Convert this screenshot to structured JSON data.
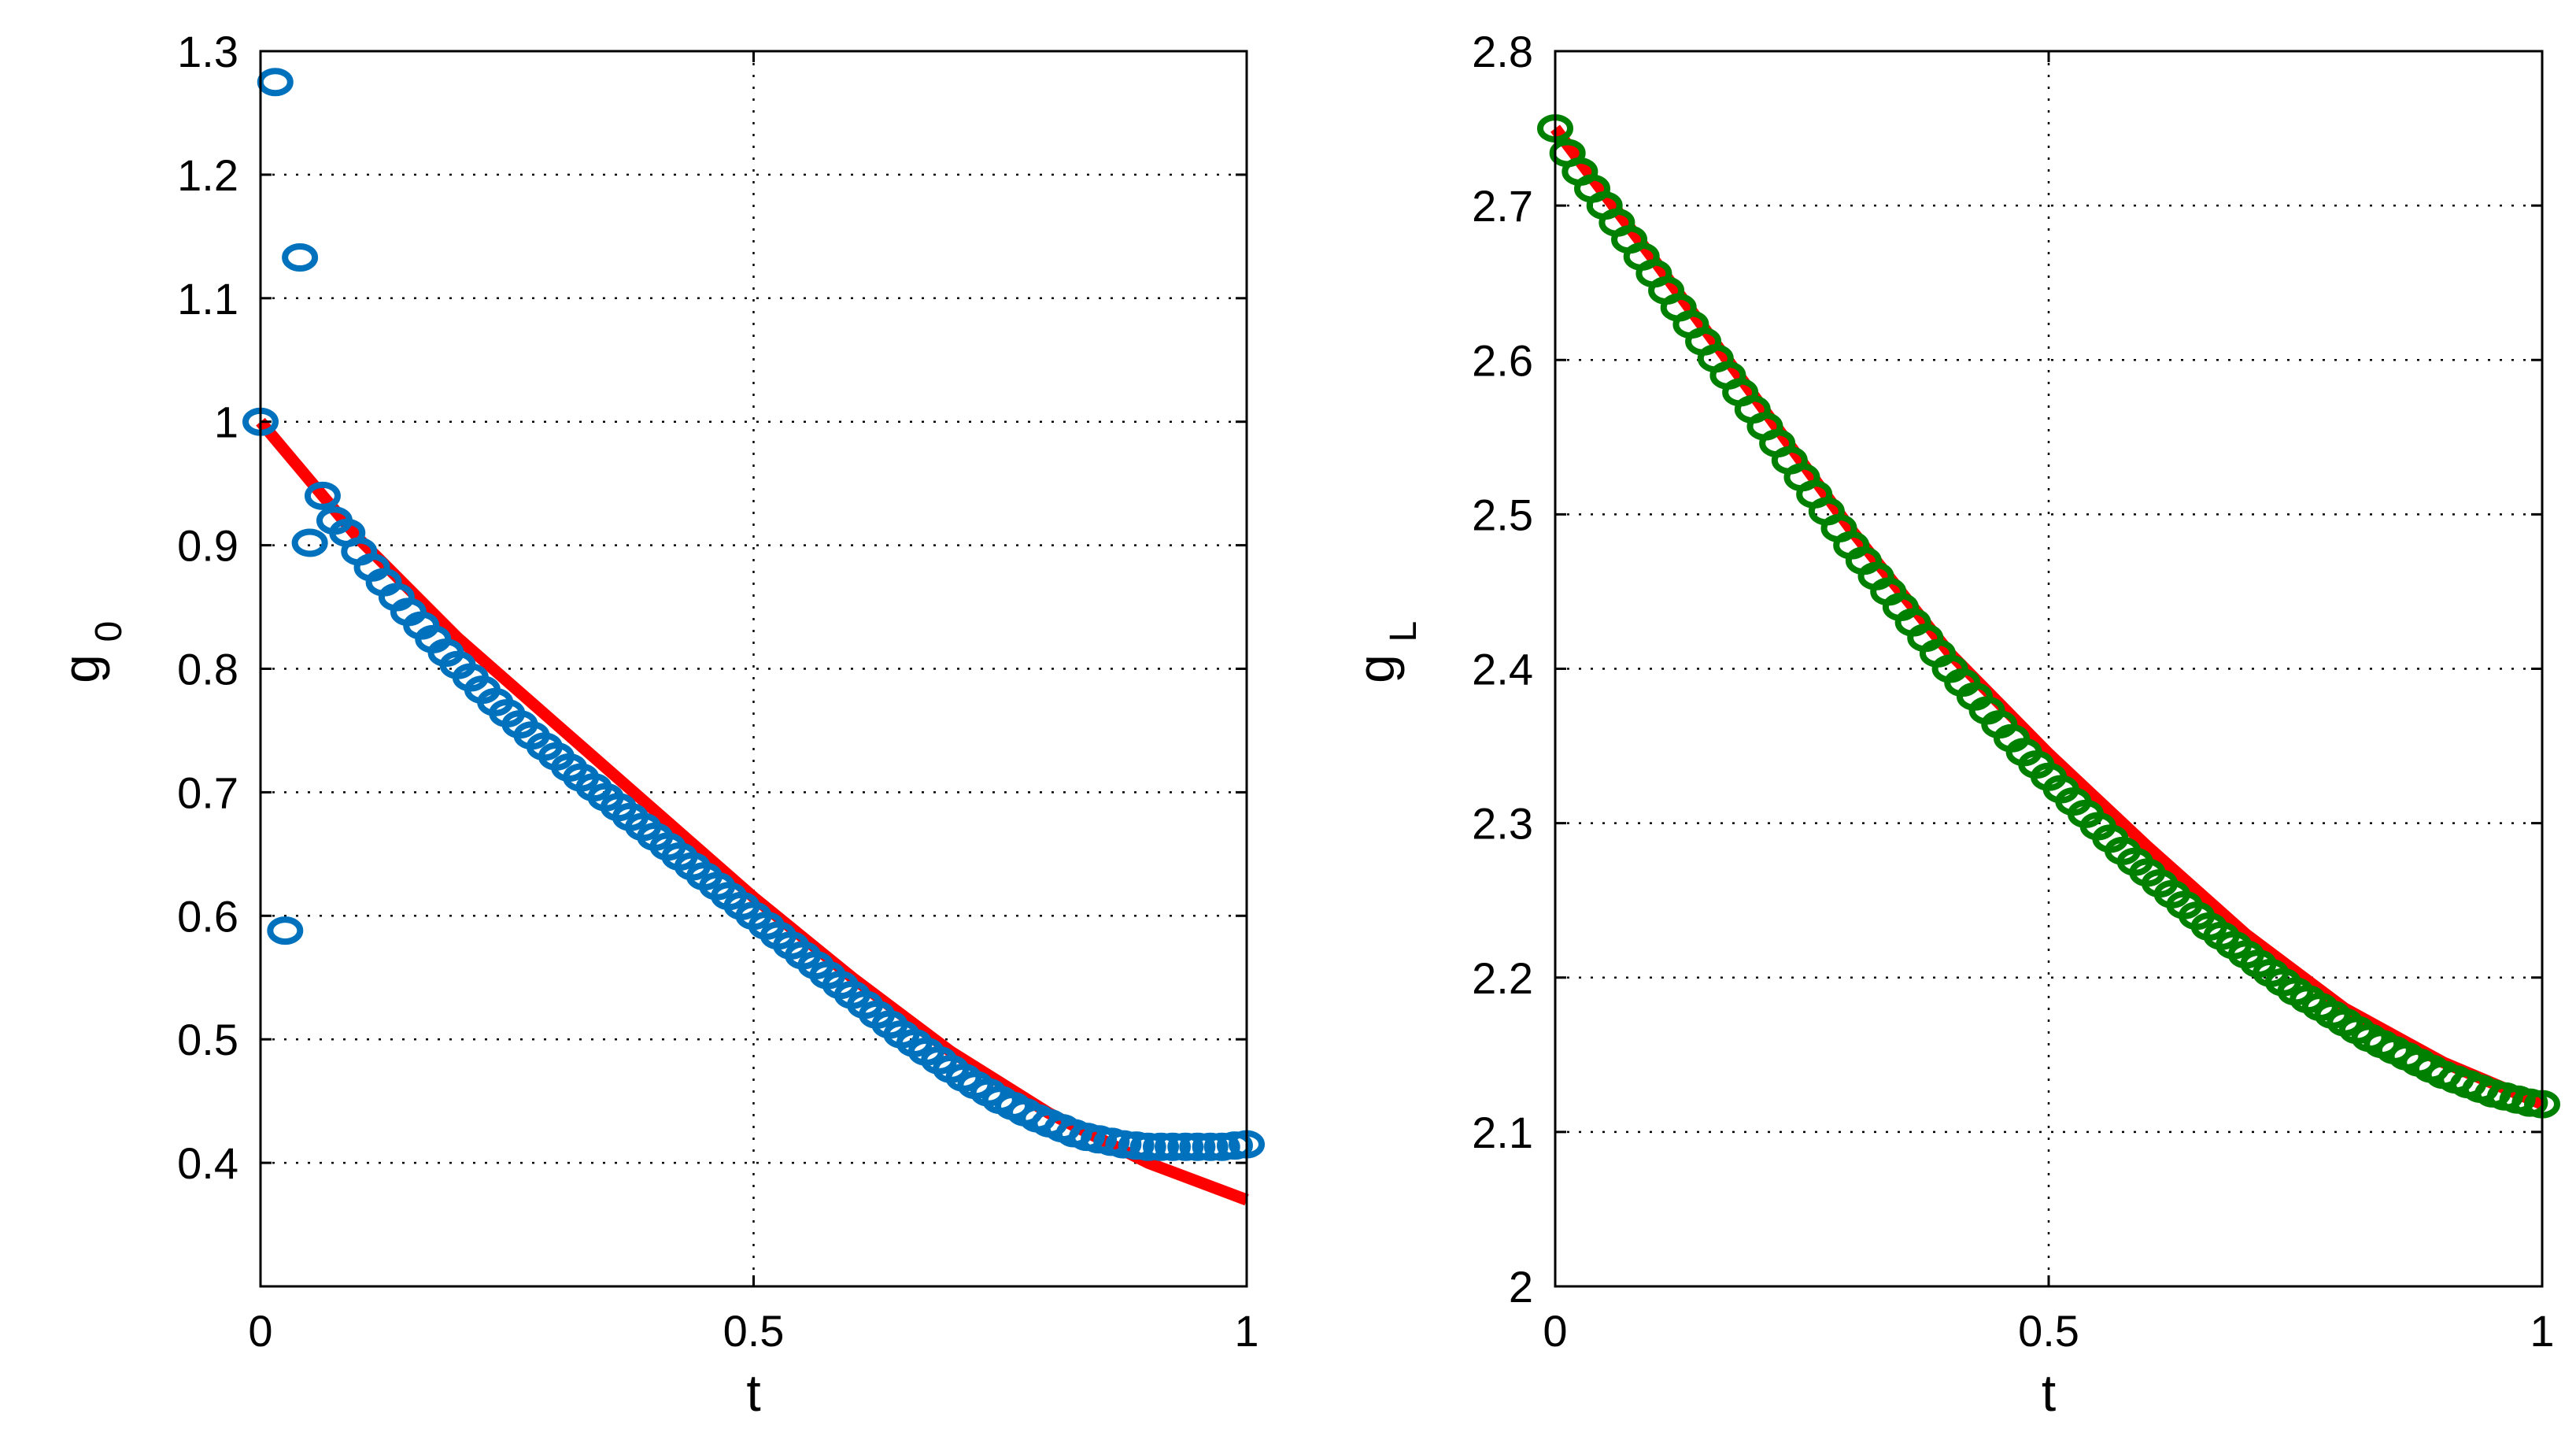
{
  "chart_data": [
    {
      "type": "scatter",
      "xlabel": "t",
      "ylabel": "g",
      "ylabel_subscript": "0",
      "xlim": [
        0,
        1
      ],
      "ylim": [
        0.3,
        1.3
      ],
      "xticks": [
        0,
        0.5,
        1
      ],
      "xtick_labels": [
        "0",
        "0.5",
        "1"
      ],
      "yticks": [
        0.4,
        0.5,
        0.6,
        0.7,
        0.8,
        0.9,
        1.0,
        1.1,
        1.2,
        1.3
      ],
      "ytick_labels": [
        "0.4",
        "0.5",
        "0.6",
        "0.7",
        "0.8",
        "0.9",
        "1",
        "1.1",
        "1.2",
        "1.3"
      ],
      "grid": true,
      "series": [
        {
          "style": "line",
          "color": "#ff0000",
          "x": [
            0,
            0.1,
            0.2,
            0.3,
            0.4,
            0.5,
            0.6,
            0.7,
            0.8,
            0.9,
            1.0
          ],
          "y": [
            1.0,
            0.905,
            0.825,
            0.755,
            0.685,
            0.615,
            0.55,
            0.49,
            0.44,
            0.4,
            0.37
          ]
        },
        {
          "style": "markers",
          "marker": "circle",
          "color": "#0072bd",
          "x": [
            0,
            0.015,
            0.025,
            0.04,
            0.05,
            0.063,
            0.075,
            0.088,
            0.1,
            0.113,
            0.125,
            0.138,
            0.15,
            0.163,
            0.175,
            0.188,
            0.2,
            0.213,
            0.225,
            0.238,
            0.25,
            0.263,
            0.275,
            0.288,
            0.3,
            0.313,
            0.325,
            0.338,
            0.35,
            0.363,
            0.375,
            0.388,
            0.4,
            0.413,
            0.425,
            0.438,
            0.45,
            0.463,
            0.475,
            0.488,
            0.5,
            0.513,
            0.525,
            0.538,
            0.55,
            0.563,
            0.575,
            0.588,
            0.6,
            0.613,
            0.625,
            0.638,
            0.65,
            0.663,
            0.675,
            0.688,
            0.7,
            0.713,
            0.725,
            0.738,
            0.75,
            0.763,
            0.775,
            0.788,
            0.8,
            0.813,
            0.825,
            0.838,
            0.85,
            0.863,
            0.875,
            0.888,
            0.9,
            0.913,
            0.925,
            0.938,
            0.95,
            0.963,
            0.975,
            0.988,
            1.0
          ],
          "y": [
            1.0,
            1.275,
            0.588,
            1.133,
            0.902,
            0.94,
            0.92,
            0.91,
            0.895,
            0.882,
            0.87,
            0.858,
            0.846,
            0.835,
            0.824,
            0.813,
            0.803,
            0.793,
            0.783,
            0.773,
            0.764,
            0.755,
            0.746,
            0.737,
            0.729,
            0.72,
            0.712,
            0.704,
            0.696,
            0.688,
            0.68,
            0.672,
            0.664,
            0.656,
            0.648,
            0.64,
            0.632,
            0.624,
            0.616,
            0.608,
            0.6,
            0.592,
            0.584,
            0.576,
            0.568,
            0.56,
            0.552,
            0.544,
            0.536,
            0.528,
            0.52,
            0.512,
            0.504,
            0.497,
            0.49,
            0.483,
            0.476,
            0.469,
            0.463,
            0.457,
            0.451,
            0.446,
            0.441,
            0.436,
            0.432,
            0.428,
            0.424,
            0.421,
            0.419,
            0.417,
            0.415,
            0.414,
            0.413,
            0.413,
            0.413,
            0.413,
            0.413,
            0.413,
            0.413,
            0.414,
            0.415
          ]
        }
      ]
    },
    {
      "type": "scatter",
      "xlabel": "t",
      "ylabel": "g",
      "ylabel_subscript": "L",
      "xlim": [
        0,
        1
      ],
      "ylim": [
        2.0,
        2.8
      ],
      "xticks": [
        0,
        0.5,
        1
      ],
      "xtick_labels": [
        "0",
        "0.5",
        "1"
      ],
      "yticks": [
        2.0,
        2.1,
        2.2,
        2.3,
        2.4,
        2.5,
        2.6,
        2.7,
        2.8
      ],
      "ytick_labels": [
        "2",
        "2.1",
        "2.2",
        "2.3",
        "2.4",
        "2.5",
        "2.6",
        "2.7",
        "2.8"
      ],
      "grid": true,
      "series": [
        {
          "style": "line",
          "color": "#ff0000",
          "x": [
            0,
            0.1,
            0.2,
            0.3,
            0.4,
            0.5,
            0.6,
            0.7,
            0.8,
            0.9,
            1.0
          ],
          "y": [
            2.75,
            2.665,
            2.578,
            2.49,
            2.41,
            2.345,
            2.285,
            2.228,
            2.18,
            2.145,
            2.118
          ]
        },
        {
          "style": "markers",
          "marker": "circle",
          "color": "#008000",
          "x": [
            0,
            0.0125,
            0.025,
            0.0375,
            0.05,
            0.0625,
            0.075,
            0.0875,
            0.1,
            0.1125,
            0.125,
            0.1375,
            0.15,
            0.1625,
            0.175,
            0.1875,
            0.2,
            0.2125,
            0.225,
            0.2375,
            0.25,
            0.2625,
            0.275,
            0.2875,
            0.3,
            0.3125,
            0.325,
            0.3375,
            0.35,
            0.3625,
            0.375,
            0.3875,
            0.4,
            0.4125,
            0.425,
            0.4375,
            0.45,
            0.4625,
            0.475,
            0.4875,
            0.5,
            0.5125,
            0.525,
            0.5375,
            0.55,
            0.5625,
            0.575,
            0.5875,
            0.6,
            0.6125,
            0.625,
            0.6375,
            0.65,
            0.6625,
            0.675,
            0.6875,
            0.7,
            0.7125,
            0.725,
            0.7375,
            0.75,
            0.7625,
            0.775,
            0.7875,
            0.8,
            0.8125,
            0.825,
            0.8375,
            0.85,
            0.8625,
            0.875,
            0.8875,
            0.9,
            0.9125,
            0.925,
            0.9375,
            0.95,
            0.9625,
            0.975,
            0.9875,
            1.0
          ],
          "y": [
            2.75,
            2.734,
            2.722,
            2.711,
            2.7,
            2.689,
            2.678,
            2.667,
            2.656,
            2.645,
            2.634,
            2.623,
            2.612,
            2.601,
            2.59,
            2.579,
            2.568,
            2.557,
            2.546,
            2.535,
            2.524,
            2.513,
            2.502,
            2.491,
            2.48,
            2.47,
            2.46,
            2.45,
            2.44,
            2.43,
            2.42,
            2.41,
            2.4,
            2.391,
            2.382,
            2.373,
            2.364,
            2.355,
            2.346,
            2.338,
            2.33,
            2.322,
            2.314,
            2.306,
            2.298,
            2.29,
            2.282,
            2.275,
            2.268,
            2.261,
            2.254,
            2.247,
            2.24,
            2.233,
            2.227,
            2.221,
            2.215,
            2.209,
            2.203,
            2.197,
            2.191,
            2.186,
            2.181,
            2.176,
            2.171,
            2.166,
            2.161,
            2.157,
            2.153,
            2.149,
            2.145,
            2.141,
            2.137,
            2.134,
            2.131,
            2.128,
            2.125,
            2.123,
            2.121,
            2.119,
            2.118
          ]
        }
      ]
    }
  ]
}
